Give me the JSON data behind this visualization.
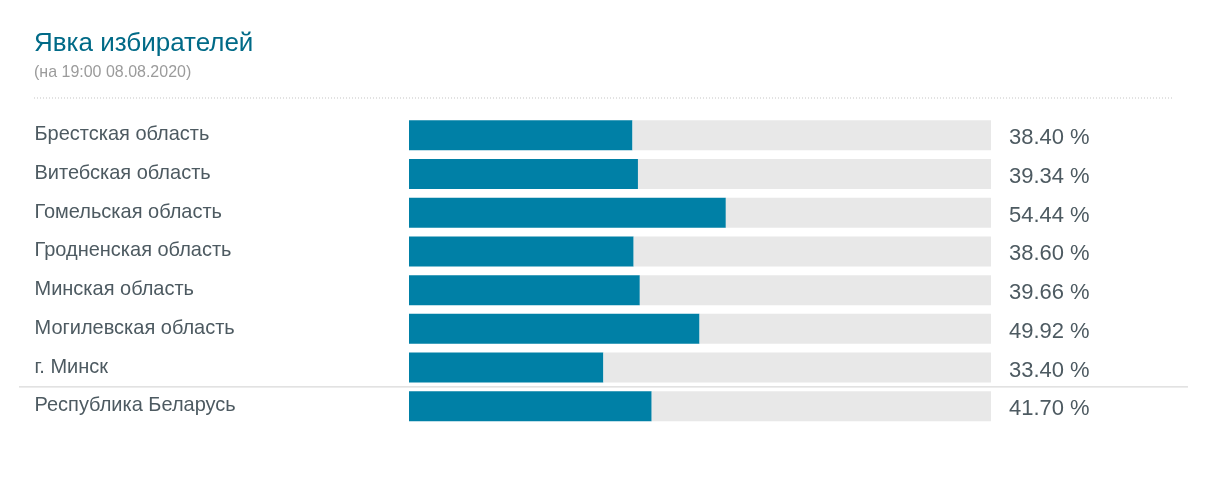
{
  "chart_data": {
    "type": "bar",
    "title": "Явка избирателей",
    "subtitle": "(на 19:00 08.08.2020)",
    "orientation": "horizontal",
    "stacked": true,
    "categories": [
      "Брестская область",
      "Витебская область",
      "Гомельская область",
      "Гродненская область",
      "Минская область",
      "Могилевская область",
      "г. Минск",
      "Республика Беларусь"
    ],
    "series": [
      {
        "color": "#0080a6",
        "values": [
          38.4,
          39.34,
          54.44,
          38.6,
          39.66,
          49.92,
          33.4,
          41.7
        ],
        "value_labels": [
          "38.40 %",
          "39.34 %",
          "54.44 %",
          "38.60 %",
          "39.66 %",
          "49.92 %",
          "33.40 %",
          "41.70 %"
        ]
      },
      {
        "color": "#e8e8e8",
        "values": [
          61.6,
          60.66,
          45.56,
          61.4,
          60.34,
          50.08,
          66.6,
          58.3
        ]
      }
    ],
    "xlim": [
      0,
      100
    ],
    "tick_labels": "y"
  }
}
